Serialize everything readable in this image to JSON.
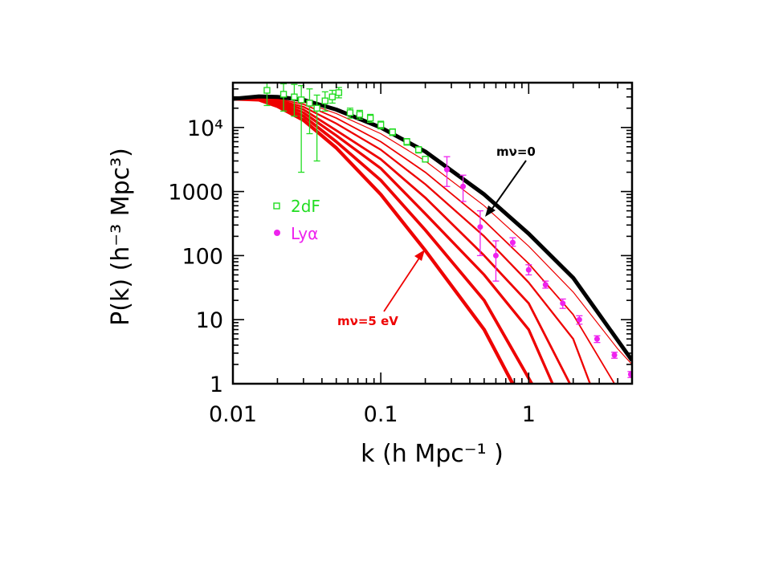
{
  "chart_data": {
    "type": "line",
    "title": "",
    "xlabel": "k (h Mpc⁻¹ )",
    "ylabel": "P(k) (h⁻³ Mpc³)",
    "xscale": "log",
    "yscale": "log",
    "xlim": [
      0.01,
      5
    ],
    "ylim": [
      1,
      50000
    ],
    "x_ticks": [
      {
        "value": 0.01,
        "label": "0.01"
      },
      {
        "value": 0.1,
        "label": "0.1"
      },
      {
        "value": 1,
        "label": "1"
      }
    ],
    "y_ticks": [
      {
        "value": 1,
        "label": "1"
      },
      {
        "value": 10,
        "label": "10"
      },
      {
        "value": 100,
        "label": "100"
      },
      {
        "value": 1000,
        "label": "1000"
      },
      {
        "value": 10000,
        "label": "10⁴"
      }
    ],
    "grid": false,
    "legend": {
      "position": "middle-left",
      "entries": [
        {
          "label": "2dF",
          "marker": "open-square",
          "color": "#22dd22"
        },
        {
          "label": "Lyα",
          "marker": "filled-circle",
          "color": "#ee22ee"
        }
      ]
    },
    "annotations": [
      {
        "text": "mν=0",
        "color": "#000000",
        "points_to_k": 0.55
      },
      {
        "text": "mν=5 eV",
        "color": "#ee0000",
        "points_to_k": 0.25
      }
    ],
    "series": [
      {
        "color": "#000000",
        "x": [
          0.01,
          0.015,
          0.02,
          0.03,
          0.05,
          0.1,
          0.2,
          0.5,
          1,
          2,
          5
        ],
        "values": [
          28000,
          30500,
          30000,
          27000,
          19000,
          10000,
          4200,
          900,
          220,
          45,
          2.3
        ]
      },
      {
        "color": "#ee0000",
        "x": [
          0.01,
          0.015,
          0.02,
          0.03,
          0.05,
          0.1,
          0.2,
          0.5,
          1,
          2,
          4,
          5
        ],
        "values": [
          28000,
          30000,
          29000,
          25000,
          16500,
          8000,
          3000,
          600,
          140,
          27,
          3.5,
          2
        ]
      },
      {
        "color": "#ee0000",
        "x": [
          0.01,
          0.015,
          0.02,
          0.03,
          0.05,
          0.1,
          0.2,
          0.5,
          1,
          2,
          3.8
        ],
        "values": [
          28000,
          29500,
          28000,
          23000,
          14000,
          6000,
          2000,
          350,
          75,
          12,
          1
        ]
      },
      {
        "color": "#ee0000",
        "x": [
          0.01,
          0.015,
          0.02,
          0.03,
          0.05,
          0.1,
          0.2,
          0.5,
          1,
          2,
          2.6
        ],
        "values": [
          28000,
          29000,
          27000,
          21000,
          11500,
          4500,
          1300,
          200,
          38,
          5,
          1
        ]
      },
      {
        "color": "#ee0000",
        "x": [
          0.01,
          0.015,
          0.02,
          0.03,
          0.05,
          0.1,
          0.2,
          0.5,
          1,
          1.9
        ],
        "values": [
          28000,
          28500,
          26000,
          19000,
          9000,
          3200,
          800,
          100,
          18,
          1
        ]
      },
      {
        "color": "#ee0000",
        "x": [
          0.01,
          0.015,
          0.02,
          0.03,
          0.05,
          0.1,
          0.2,
          0.5,
          1,
          1.45
        ],
        "values": [
          28000,
          28000,
          24500,
          17000,
          7500,
          2300,
          450,
          50,
          7,
          1
        ]
      },
      {
        "color": "#ee0000",
        "x": [
          0.01,
          0.015,
          0.02,
          0.03,
          0.05,
          0.1,
          0.2,
          0.5,
          1.05
        ],
        "values": [
          28000,
          27500,
          23000,
          15000,
          6000,
          1500,
          250,
          20,
          1
        ]
      },
      {
        "color": "#ee0000",
        "x": [
          0.01,
          0.015,
          0.02,
          0.03,
          0.05,
          0.1,
          0.2,
          0.5,
          0.78
        ],
        "values": [
          28000,
          27000,
          21500,
          13000,
          4800,
          900,
          120,
          7,
          1
        ]
      }
    ],
    "data_2dF": [
      {
        "k": 0.017,
        "p": 38000,
        "lo": 22000,
        "hi": 50000
      },
      {
        "k": 0.022,
        "p": 33000,
        "lo": 18000,
        "hi": 48000
      },
      {
        "k": 0.026,
        "p": 30000,
        "lo": 15000,
        "hi": 47000
      },
      {
        "k": 0.029,
        "p": 27000,
        "lo": 2000,
        "hi": 45000
      },
      {
        "k": 0.033,
        "p": 24000,
        "lo": 8000,
        "hi": 40000
      },
      {
        "k": 0.037,
        "p": 20000,
        "lo": 3000,
        "hi": 32000
      },
      {
        "k": 0.042,
        "p": 26000,
        "lo": 18000,
        "hi": 36000
      },
      {
        "k": 0.047,
        "p": 30000,
        "lo": 24000,
        "hi": 38000
      },
      {
        "k": 0.052,
        "p": 35000,
        "lo": 29000,
        "hi": 42000
      },
      {
        "k": 0.062,
        "p": 17000,
        "lo": 14000,
        "hi": 20000
      },
      {
        "k": 0.072,
        "p": 16000,
        "lo": 13500,
        "hi": 18500
      },
      {
        "k": 0.085,
        "p": 14000,
        "lo": 12000,
        "hi": 16000
      },
      {
        "k": 0.1,
        "p": 11000,
        "lo": 9500,
        "hi": 12500
      },
      {
        "k": 0.12,
        "p": 8500,
        "lo": 7500,
        "hi": 9500
      },
      {
        "k": 0.15,
        "p": 6000,
        "lo": 5300,
        "hi": 6700
      },
      {
        "k": 0.18,
        "p": 4500,
        "lo": 4000,
        "hi": 5000
      },
      {
        "k": 0.2,
        "p": 3200,
        "lo": 2900,
        "hi": 3500
      }
    ],
    "data_lya": [
      {
        "k": 0.28,
        "p": 2200,
        "lo": 1200,
        "hi": 3500
      },
      {
        "k": 0.36,
        "p": 1200,
        "lo": 700,
        "hi": 1800
      },
      {
        "k": 0.47,
        "p": 280,
        "lo": 100,
        "hi": 500
      },
      {
        "k": 0.6,
        "p": 100,
        "lo": 40,
        "hi": 170
      },
      {
        "k": 0.78,
        "p": 160,
        "lo": 140,
        "hi": 190
      },
      {
        "k": 1.0,
        "p": 60,
        "lo": 50,
        "hi": 72
      },
      {
        "k": 1.3,
        "p": 35,
        "lo": 31,
        "hi": 40
      },
      {
        "k": 1.7,
        "p": 18,
        "lo": 15,
        "hi": 21
      },
      {
        "k": 2.2,
        "p": 10,
        "lo": 8.5,
        "hi": 11.5
      },
      {
        "k": 2.9,
        "p": 5,
        "lo": 4.4,
        "hi": 5.6
      },
      {
        "k": 3.8,
        "p": 2.8,
        "lo": 2.5,
        "hi": 3.1
      },
      {
        "k": 4.9,
        "p": 1.4,
        "lo": 1.25,
        "hi": 1.55
      }
    ]
  }
}
